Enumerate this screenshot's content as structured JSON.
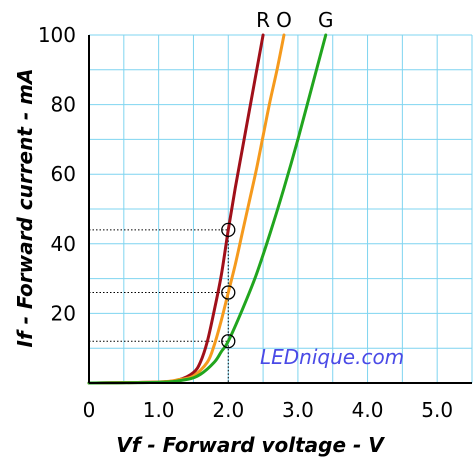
{
  "chart_data": {
    "type": "line",
    "xlabel": "Vf - Forward voltage - V",
    "ylabel": "If - Forward current - mA",
    "xlim": [
      0,
      5.5
    ],
    "ylim": [
      0,
      100
    ],
    "x_ticks": [
      "0",
      "1.0",
      "2.0",
      "3.0",
      "4.0",
      "5.0"
    ],
    "x_tick_values": [
      0,
      1,
      2,
      3,
      4,
      5
    ],
    "y_ticks": [
      "20",
      "40",
      "60",
      "80",
      "100"
    ],
    "y_tick_values": [
      20,
      40,
      60,
      80,
      100
    ],
    "grid": true,
    "series": [
      {
        "name": "R",
        "color": "#a0101a",
        "x": [
          0,
          1.0,
          1.3,
          1.5,
          1.6,
          1.7,
          1.8,
          1.9,
          2.0,
          2.1,
          2.2,
          2.3,
          2.4,
          2.5
        ],
        "y": [
          0,
          0.3,
          1,
          3,
          6,
          12,
          21,
          31,
          44,
          56,
          67,
          78,
          89,
          100
        ]
      },
      {
        "name": "O",
        "color": "#f59a1d",
        "x": [
          0,
          1.0,
          1.3,
          1.5,
          1.7,
          1.8,
          1.9,
          2.0,
          2.1,
          2.2,
          2.3,
          2.4,
          2.5,
          2.6,
          2.7,
          2.8
        ],
        "y": [
          0,
          0.3,
          1,
          2,
          6,
          11,
          18,
          26,
          34,
          43,
          52,
          61,
          71,
          81,
          90,
          100
        ]
      },
      {
        "name": "G",
        "color": "#21a51e",
        "x": [
          0,
          1.0,
          1.4,
          1.6,
          1.8,
          1.9,
          2.0,
          2.2,
          2.4,
          2.6,
          2.8,
          3.0,
          3.2,
          3.4
        ],
        "y": [
          0,
          0.2,
          1,
          2.5,
          6,
          9,
          12,
          21,
          31,
          43,
          56,
          70,
          85,
          100
        ]
      }
    ],
    "markers": [
      {
        "x": 2.0,
        "y": 44
      },
      {
        "x": 2.0,
        "y": 26
      },
      {
        "x": 2.0,
        "y": 12
      }
    ],
    "annotations": [
      "LEDnique.com"
    ]
  }
}
